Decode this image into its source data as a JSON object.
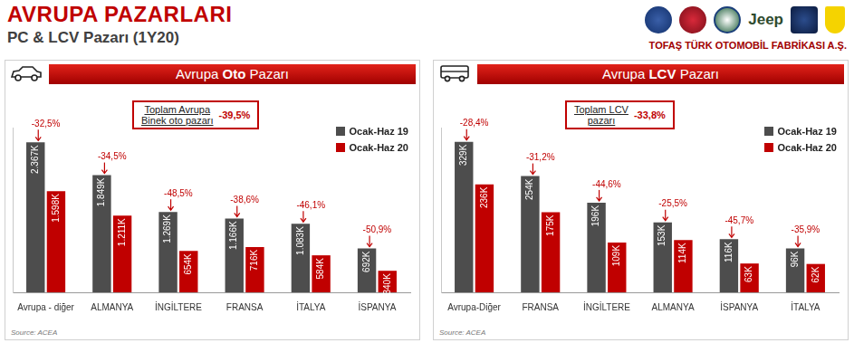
{
  "header": {
    "title": "AVRUPA PAZARLARI",
    "subtitle": "PC & LCV Pazarı (1Y20)",
    "logo_text": "Jeep",
    "company": "TOFAŞ TÜRK OTOMOBİL FABRİKASI A.Ş."
  },
  "chart_data": [
    {
      "type": "bar",
      "title": "Avrupa Oto Pazarı",
      "annotation": {
        "lines": [
          "Toplam Avrupa",
          "Binek oto pazarı"
        ],
        "value": "-39,5%"
      },
      "categories": [
        "Avrupa - diğer",
        "ALMANYA",
        "İNGİLTERE",
        "FRANSA",
        "İTALYA",
        "İSPANYA"
      ],
      "series": [
        {
          "name": "Ocak-Haz 19",
          "color": "#4d4d4d",
          "values": [
            2367,
            1849,
            1269,
            1166,
            1083,
            692
          ],
          "value_labels": [
            "2.367K",
            "1.849K",
            "1.269K",
            "1.166K",
            "1.083K",
            "692K"
          ]
        },
        {
          "name": "Ocak-Haz 20",
          "color": "#c00000",
          "values": [
            1598,
            1211,
            654,
            716,
            584,
            340
          ],
          "value_labels": [
            "1.598K",
            "1.211K",
            "654K",
            "716K",
            "584K",
            "340K"
          ]
        }
      ],
      "changes": [
        "-32,5%",
        "-34,5%",
        "-48,5%",
        "-38,6%",
        "-46,1%",
        "-50,9%"
      ],
      "ylim": [
        0,
        2600
      ],
      "grid": false,
      "legend": "top-right",
      "data_labels": true,
      "tick_labels": "x",
      "source": "Source: ACEA"
    },
    {
      "type": "bar",
      "title": "Avrupa LCV Pazarı",
      "annotation": {
        "lines": [
          "Toplam LCV",
          "pazarı"
        ],
        "value": "-33,8%"
      },
      "categories": [
        "Avrupa-Diğer",
        "FRANSA",
        "İNGİLTERE",
        "ALMANYA",
        "İSPANYA",
        "İTALYA"
      ],
      "series": [
        {
          "name": "Ocak-Haz 19",
          "color": "#4d4d4d",
          "values": [
            329,
            254,
            196,
            153,
            116,
            96
          ],
          "value_labels": [
            "329K",
            "254K",
            "196K",
            "153K",
            "116K",
            "96K"
          ]
        },
        {
          "name": "Ocak-Haz 20",
          "color": "#c00000",
          "values": [
            236,
            175,
            109,
            114,
            63,
            62
          ],
          "value_labels": [
            "236K",
            "175K",
            "109K",
            "114K",
            "63K",
            "62K"
          ]
        }
      ],
      "changes": [
        "-28,4%",
        "-31,2%",
        "-44,6%",
        "-25,5%",
        "-45,7%",
        "-35,9%"
      ],
      "ylim": [
        0,
        360
      ],
      "grid": false,
      "legend": "top-right",
      "data_labels": true,
      "tick_labels": "x",
      "source": "Source: ACEA"
    }
  ]
}
